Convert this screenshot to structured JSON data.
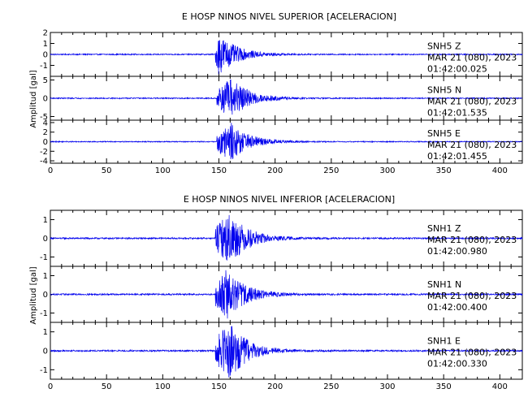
{
  "chart_data": [
    {
      "type": "line",
      "title": "E HOSP NINOS NIVEL SUPERIOR [ACELERACION]",
      "ylabel": "Amplitud [gal]",
      "xlabel": "",
      "xlim": [
        0,
        420
      ],
      "x_ticks": [
        "0",
        "50",
        "100",
        "150",
        "200",
        "250",
        "300",
        "350",
        "400"
      ],
      "grid": false,
      "line_color": "#0000ee",
      "traces": [
        {
          "station": "SNH5",
          "component": "Z",
          "date": "MAR 21 (080), 2023",
          "time": "01:42:00.025",
          "ylim": [
            -2,
            2
          ],
          "y_ticks": [
            "-1",
            "0",
            "1",
            "2"
          ],
          "onset_s": 147,
          "peak_s": 150,
          "peak_amp": 1.9,
          "noise_amp": 0.05
        },
        {
          "station": "SNH5",
          "component": "N",
          "date": "MAR 21 (080), 2023",
          "time": "01:42:01.535",
          "ylim": [
            -6,
            6
          ],
          "y_ticks": [
            "-5",
            "0",
            "5"
          ],
          "onset_s": 148,
          "peak_s": 161,
          "peak_amp": 5.5,
          "noise_amp": 0.15
        },
        {
          "station": "SNH5",
          "component": "E",
          "date": "MAR 21 (080), 2023",
          "time": "01:42:01.455",
          "ylim": [
            -4.5,
            4.5
          ],
          "y_ticks": [
            "-4",
            "-2",
            "0",
            "2",
            "4"
          ],
          "onset_s": 148,
          "peak_s": 160,
          "peak_amp": 4.2,
          "noise_amp": 0.1
        }
      ]
    },
    {
      "type": "line",
      "title": "E HOSP NINOS NIVEL INFERIOR [ACELERACION]",
      "ylabel": "Amplitud [gal]",
      "xlabel": "",
      "xlim": [
        0,
        420
      ],
      "x_ticks": [
        "0",
        "50",
        "100",
        "150",
        "200",
        "250",
        "300",
        "350",
        "400"
      ],
      "grid": false,
      "line_color": "#0000ee",
      "traces": [
        {
          "station": "SNH1",
          "component": "Z",
          "date": "MAR 21 (080), 2023",
          "time": "01:42:00.980",
          "ylim": [
            -1.5,
            1.5
          ],
          "y_ticks": [
            "-1",
            "0",
            "1"
          ],
          "onset_s": 147,
          "peak_s": 160,
          "peak_amp": 1.4,
          "noise_amp": 0.04
        },
        {
          "station": "SNH1",
          "component": "N",
          "date": "MAR 21 (080), 2023",
          "time": "01:42:00.400",
          "ylim": [
            -1.5,
            1.5
          ],
          "y_ticks": [
            "-1",
            "0",
            "1"
          ],
          "onset_s": 147,
          "peak_s": 157,
          "peak_amp": 1.4,
          "noise_amp": 0.04
        },
        {
          "station": "SNH1",
          "component": "E",
          "date": "MAR 21 (080), 2023",
          "time": "01:42:00.330",
          "ylim": [
            -1.5,
            1.5
          ],
          "y_ticks": [
            "-1",
            "0",
            "1"
          ],
          "onset_s": 147,
          "peak_s": 160,
          "peak_amp": 1.5,
          "noise_amp": 0.04
        }
      ]
    }
  ]
}
